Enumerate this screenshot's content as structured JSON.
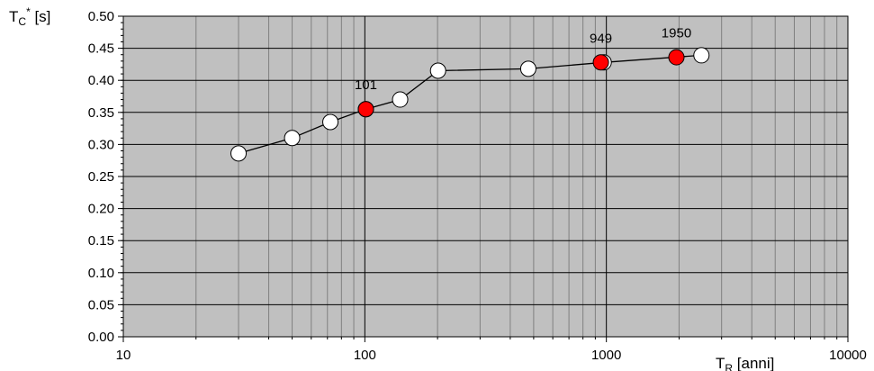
{
  "chart_data": {
    "type": "scatter",
    "xscale": "log",
    "xlim": [
      10,
      10000
    ],
    "ylim": [
      0.0,
      0.5
    ],
    "grid": true,
    "xlabel": {
      "main": "T",
      "sub": "R",
      "rest": " [anni]"
    },
    "ylabel": {
      "main": "T",
      "sub": "C",
      "sup": "*",
      "rest": " [s]"
    },
    "x_ticks": [
      {
        "value": 10,
        "label": "10"
      },
      {
        "value": 100,
        "label": "100"
      },
      {
        "value": 1000,
        "label": "1000"
      },
      {
        "value": 10000,
        "label": "10000"
      }
    ],
    "y_ticks": [
      {
        "value": 0.0,
        "label": "0.00"
      },
      {
        "value": 0.05,
        "label": "0.05"
      },
      {
        "value": 0.1,
        "label": "0.10"
      },
      {
        "value": 0.15,
        "label": "0.15"
      },
      {
        "value": 0.2,
        "label": "0.20"
      },
      {
        "value": 0.25,
        "label": "0.25"
      },
      {
        "value": 0.3,
        "label": "0.30"
      },
      {
        "value": 0.35,
        "label": "0.35"
      },
      {
        "value": 0.4,
        "label": "0.40"
      },
      {
        "value": 0.45,
        "label": "0.45"
      },
      {
        "value": 0.5,
        "label": "0.50"
      }
    ],
    "series": [
      {
        "marker": "circle-open",
        "line": true,
        "points": [
          {
            "x": 30,
            "y": 0.286
          },
          {
            "x": 50,
            "y": 0.31
          },
          {
            "x": 72,
            "y": 0.335
          },
          {
            "x": 101,
            "y": 0.355
          },
          {
            "x": 140,
            "y": 0.37
          },
          {
            "x": 201,
            "y": 0.415
          },
          {
            "x": 475,
            "y": 0.418
          },
          {
            "x": 975,
            "y": 0.428
          },
          {
            "x": 2475,
            "y": 0.439
          }
        ]
      },
      {
        "marker": "circle-filled",
        "line": false,
        "points": [
          {
            "x": 101,
            "y": 0.355,
            "label": "101"
          },
          {
            "x": 949,
            "y": 0.428,
            "label": "949"
          },
          {
            "x": 1950,
            "y": 0.436,
            "label": "1950"
          }
        ]
      }
    ],
    "colors": {
      "plot_background": "#c0c0c0",
      "grid_line": "#808080",
      "decade_line": "#000000",
      "line": "#000000",
      "open_marker_fill": "#ffffff",
      "highlight_marker_fill": "#ff0000"
    }
  }
}
